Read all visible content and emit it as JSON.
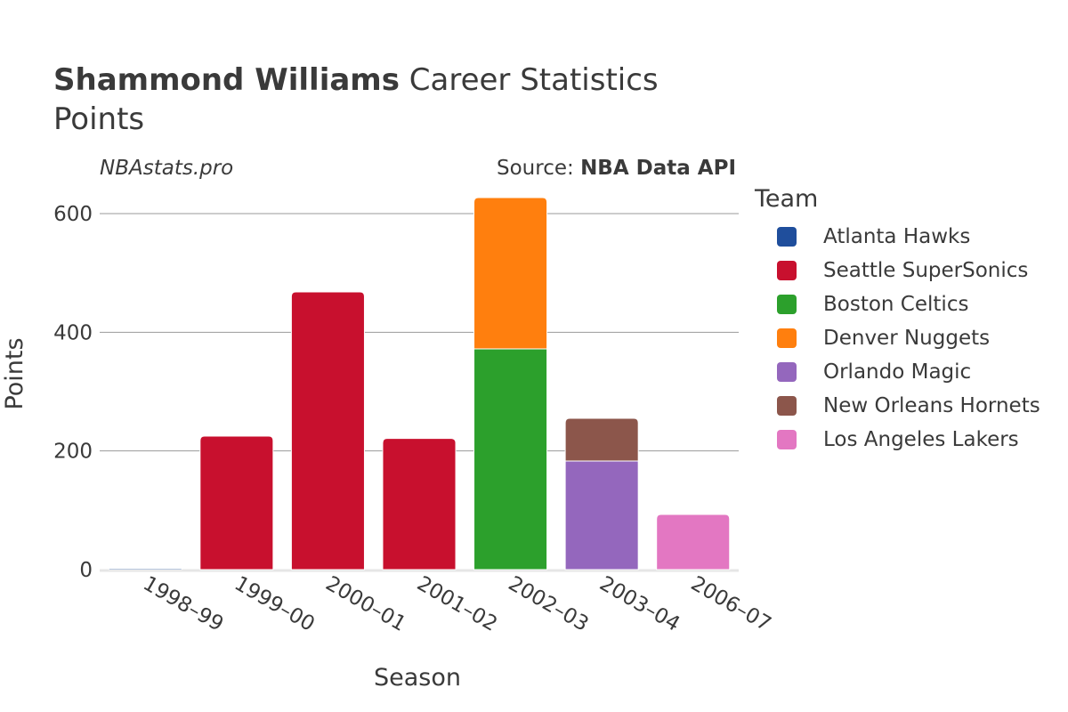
{
  "header": {
    "title_bold": "Shammond Williams",
    "title_rest": "Career Statistics",
    "subtitle": "Points"
  },
  "watermark": "NBAstats.pro",
  "source": {
    "label": "Source:",
    "value": "NBA Data API"
  },
  "chart_data": {
    "type": "bar",
    "stacked": true,
    "title": "Shammond Williams Career Statistics",
    "subtitle": "Points",
    "xlabel": "Season",
    "ylabel": "Points",
    "ylim": [
      0,
      650
    ],
    "yticks": [
      0,
      200,
      400,
      600
    ],
    "grid": true,
    "legend_title": "Team",
    "legend_position": "right",
    "categories": [
      "1998–99",
      "1999–00",
      "2000–01",
      "2001–02",
      "2002–03",
      "2003–04",
      "2006–07"
    ],
    "series": [
      {
        "name": "Atlanta Hawks",
        "color": "#1f4e9c",
        "values": [
          2,
          0,
          0,
          0,
          0,
          0,
          0
        ]
      },
      {
        "name": "Seattle SuperSonics",
        "color": "#c8102e",
        "values": [
          0,
          225,
          468,
          221,
          0,
          0,
          0
        ]
      },
      {
        "name": "Boston Celtics",
        "color": "#2ca02c",
        "values": [
          0,
          0,
          0,
          0,
          372,
          0,
          0
        ]
      },
      {
        "name": "Denver Nuggets",
        "color": "#ff7f0e",
        "values": [
          0,
          0,
          0,
          0,
          255,
          0,
          0
        ]
      },
      {
        "name": "Orlando Magic",
        "color": "#9467bd",
        "values": [
          0,
          0,
          0,
          0,
          0,
          183,
          0
        ]
      },
      {
        "name": "New Orleans Hornets",
        "color": "#8c564b",
        "values": [
          0,
          0,
          0,
          0,
          0,
          72,
          0
        ]
      },
      {
        "name": "Los Angeles Lakers",
        "color": "#e377c2",
        "values": [
          0,
          0,
          0,
          0,
          0,
          0,
          93
        ]
      }
    ]
  }
}
